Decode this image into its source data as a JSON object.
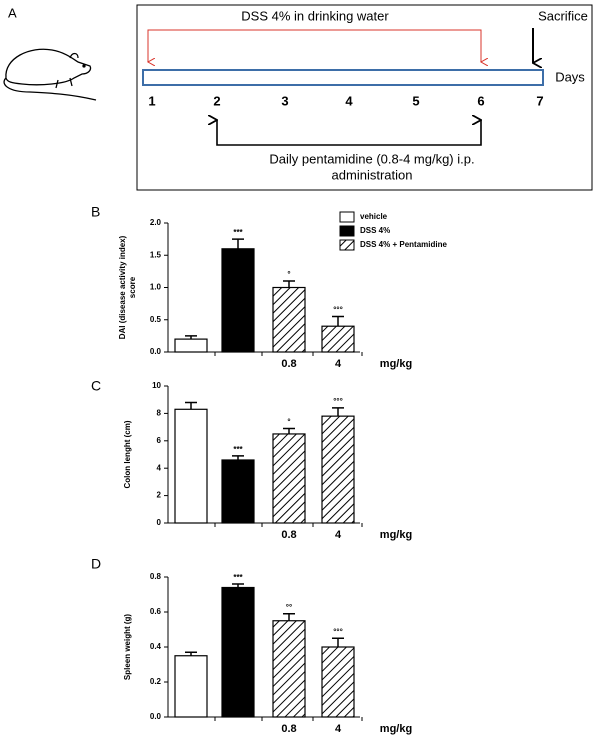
{
  "timeline": {
    "label": "A",
    "top_text": "DSS 4% in drinking water",
    "end_text": "Sacrifice",
    "unit": "Days",
    "days": [
      1,
      2,
      3,
      4,
      5,
      6,
      7
    ],
    "treatment": [
      "Daily pentamidine (0.8-4 mg/kg) i.p.",
      "administration"
    ]
  },
  "chart_data": [
    {
      "type": "bar",
      "panel_label": "B",
      "ylabel": [
        "DAI (disease activity index)",
        "score"
      ],
      "categories": [
        null,
        null,
        "0.8",
        "4"
      ],
      "x_unit": "mg/kg",
      "values": [
        0.2,
        1.6,
        1.0,
        0.4
      ],
      "errors": [
        0.05,
        0.15,
        0.1,
        0.15
      ],
      "annotations": [
        null,
        "***",
        "°",
        "°°°"
      ],
      "colors": [
        "#ffffff",
        "#000000",
        "#ffffff",
        "#ffffff"
      ],
      "patterns": [
        "solid",
        "solid",
        "hatch",
        "hatch"
      ],
      "ylim": [
        0,
        2
      ],
      "yticks": [
        {
          "value": 0,
          "label": "0.0"
        },
        0.5,
        {
          "value": 1,
          "label": "1.0"
        },
        1.5,
        {
          "value": 2,
          "label": "2.0"
        }
      ],
      "legend": [
        {
          "name": "vehicle",
          "color": "#ffffff",
          "pattern": "solid"
        },
        {
          "name": "DSS 4%",
          "color": "#000000",
          "pattern": "solid"
        },
        {
          "name": "DSS 4% + Pentamidine",
          "color": "#ffffff",
          "pattern": "hatch"
        }
      ]
    },
    {
      "type": "bar",
      "panel_label": "C",
      "ylabel": "Colon lenght (cm)",
      "categories": [
        null,
        null,
        "0.8",
        "4"
      ],
      "x_unit": "mg/kg",
      "values": [
        8.3,
        4.6,
        6.5,
        7.8
      ],
      "errors": [
        0.5,
        0.3,
        0.4,
        0.6
      ],
      "annotations": [
        null,
        "***",
        "°",
        "°°°"
      ],
      "colors": [
        "#ffffff",
        "#000000",
        "#ffffff",
        "#ffffff"
      ],
      "patterns": [
        "solid",
        "solid",
        "hatch",
        "hatch"
      ],
      "ylim": [
        0,
        10
      ],
      "yticks": [
        0,
        2,
        4,
        6,
        8,
        10
      ]
    },
    {
      "type": "bar",
      "panel_label": "D",
      "ylabel": "Spleen weight (g)",
      "categories": [
        null,
        null,
        "0.8",
        "4"
      ],
      "x_unit": "mg/kg",
      "values": [
        0.35,
        0.74,
        0.55,
        0.4
      ],
      "errors": [
        0.02,
        0.02,
        0.04,
        0.05
      ],
      "annotations": [
        null,
        "***",
        "°°",
        "°°°"
      ],
      "colors": [
        "#ffffff",
        "#000000",
        "#ffffff",
        "#ffffff"
      ],
      "patterns": [
        "solid",
        "solid",
        "hatch",
        "hatch"
      ],
      "ylim": [
        0,
        0.8
      ],
      "yticks": [
        {
          "value": 0,
          "label": "0.0"
        },
        0.2,
        0.4,
        0.6,
        0.8
      ]
    }
  ]
}
